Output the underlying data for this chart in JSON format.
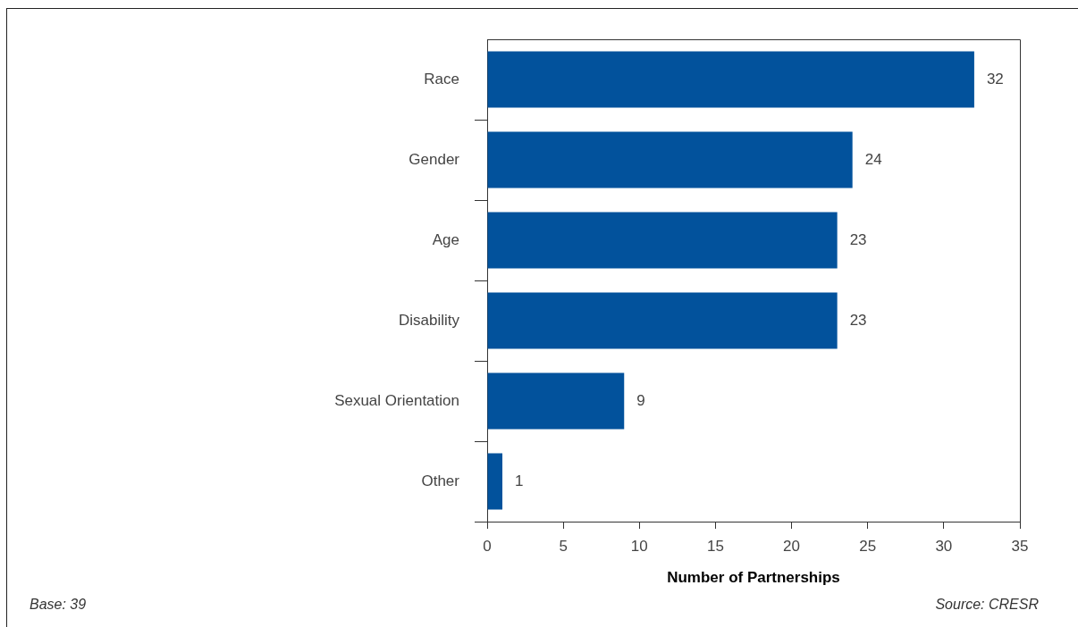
{
  "chart_data": {
    "type": "bar",
    "orientation": "horizontal",
    "categories": [
      "Race",
      "Gender",
      "Age",
      "Disability",
      "Sexual Orientation",
      "Other"
    ],
    "values": [
      32,
      24,
      23,
      23,
      9,
      1
    ],
    "color": "#02529c",
    "xlim": [
      0,
      35
    ],
    "xticks": [
      0,
      5,
      10,
      15,
      20,
      25,
      30,
      35
    ],
    "xlabel": "Number of Partnerships",
    "data_labels": true,
    "annotations": [
      "Base: 39",
      "Source: CRESR"
    ]
  }
}
